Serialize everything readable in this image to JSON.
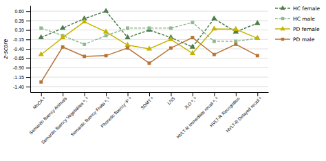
{
  "chart_data": {
    "type": "line",
    "ylabel": "z-score",
    "categories": [
      "MoCA ᵃ",
      "Semantic fluency Animals",
      "Semantic fluency Vegetables ᵃ, ᵇ",
      "Semantic fluency Fruits ᵃ, ᵇ",
      "Phonetic fluency 'F' ᵇ",
      "SDMT ᵃ",
      "LNS",
      "JLO ᵃ, ᵇ",
      "HVLT-R Immediate recall ᵃ, ᵇ",
      "HVLT-R Recognition",
      "HVLT-R Delayed recall ᵃ"
    ],
    "series": [
      {
        "name": "HC female",
        "color": "#4d7c4d",
        "marker": "triangle",
        "line_style": "dashed",
        "values": [
          -0.1,
          0.15,
          0.4,
          0.6,
          -0.1,
          0.1,
          -0.1,
          -0.35,
          0.4,
          0.05,
          0.28
        ]
      },
      {
        "name": "HC male",
        "color": "#8fba8f",
        "marker": "square",
        "line_style": "dashed",
        "values": [
          0.15,
          -0.05,
          -0.28,
          -0.05,
          0.15,
          0.15,
          0.15,
          0.3,
          -0.2,
          -0.2,
          -0.12
        ]
      },
      {
        "name": "PD female",
        "color": "#c8b400",
        "marker": "triangle",
        "line_style": "solid",
        "values": [
          -0.55,
          -0.1,
          0.32,
          0.05,
          -0.3,
          -0.4,
          -0.15,
          -0.52,
          0.13,
          0.12,
          -0.12
        ]
      },
      {
        "name": "PD male",
        "color": "#b87333",
        "marker": "square",
        "line_style": "solid",
        "values": [
          -1.28,
          -0.35,
          -0.6,
          -0.58,
          -0.38,
          -0.78,
          -0.38,
          -0.1,
          -0.55,
          -0.28,
          -0.58
        ]
      }
    ],
    "ylim": [
      -1.55,
      0.75
    ],
    "yticks": [
      {
        "value": -1.4,
        "label": "-1.40"
      },
      -1.15,
      {
        "value": -0.9,
        "label": "-0.90"
      },
      -0.65,
      {
        "value": -0.4,
        "label": "-0.40"
      },
      -0.15,
      {
        "value": 0.1,
        "label": "0.10"
      },
      0.35,
      {
        "value": 0.6,
        "label": "0.60"
      }
    ],
    "grid": true,
    "legend": "right"
  }
}
